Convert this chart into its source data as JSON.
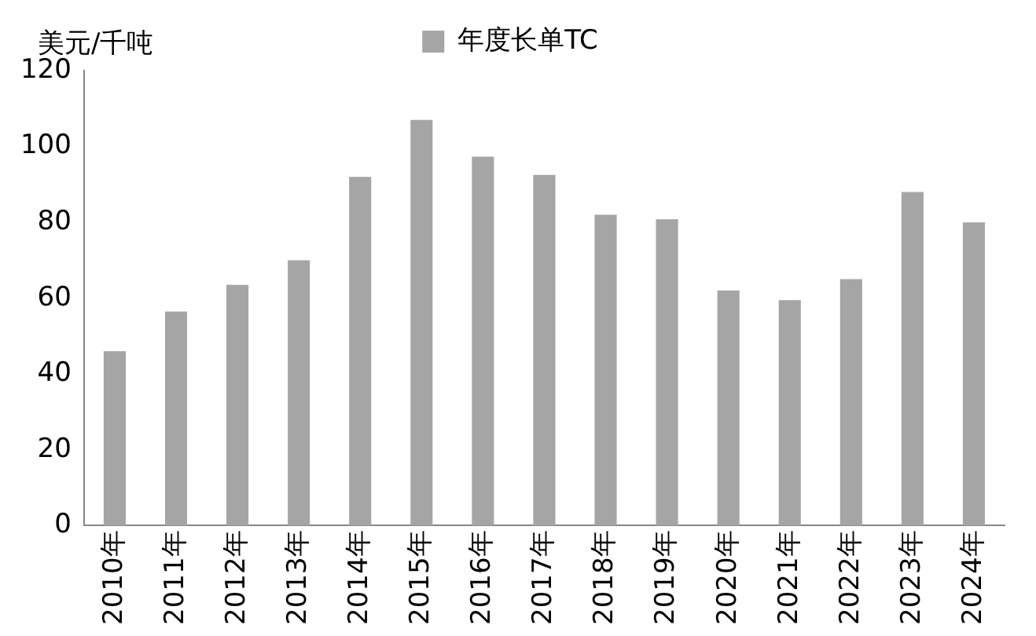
{
  "chart_data": {
    "type": "bar",
    "ylabel": "美元/千吨",
    "categories": [
      "2010年",
      "2011年",
      "2012年",
      "2013年",
      "2014年",
      "2015年",
      "2016年",
      "2017年",
      "2018年",
      "2019年",
      "2020年",
      "2021年",
      "2022年",
      "2023年",
      "2024年"
    ],
    "series": [
      {
        "name": "年度长单TC",
        "color": "#a5a5a5",
        "values": [
          46,
          56.5,
          63.5,
          70,
          92,
          107,
          97.3,
          92.5,
          82,
          80.8,
          62,
          59.5,
          65,
          88,
          80
        ]
      }
    ],
    "ylim": [
      0,
      120
    ],
    "yticks": [
      0,
      20,
      40,
      60,
      80,
      100,
      120
    ],
    "grid": false,
    "legend": "top"
  }
}
